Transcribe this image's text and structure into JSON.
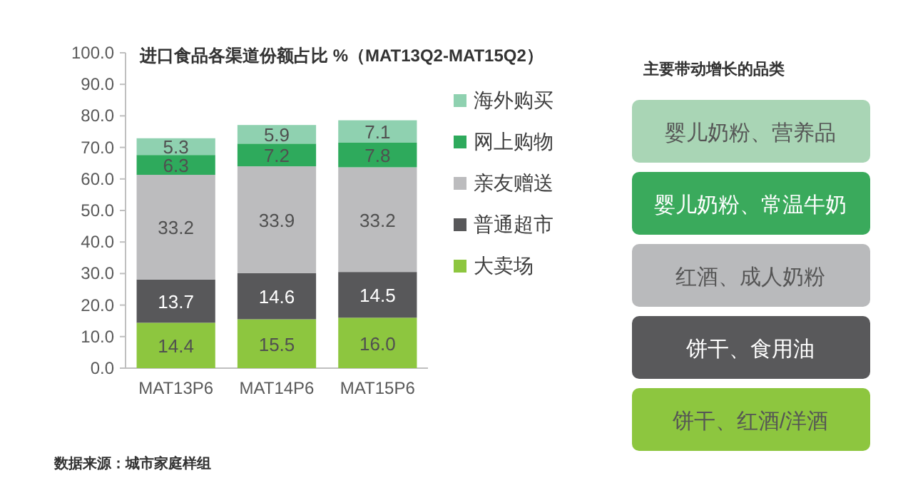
{
  "chart_data": [
    {
      "type": "bar",
      "stacked": true,
      "title": "进口食品各渠道份额占比 %（MAT13Q2-MAT15Q2）",
      "categories": [
        "MAT13P6",
        "MAT14P6",
        "MAT15P6"
      ],
      "series": [
        {
          "name": "大卖场",
          "color": "#8dc63f",
          "values": [
            14.4,
            15.5,
            16.0
          ],
          "value_labels": [
            "14.4",
            "15.5",
            "16.0"
          ]
        },
        {
          "name": "普通超市",
          "color": "#58585a",
          "values": [
            13.7,
            14.6,
            14.5
          ],
          "value_labels": [
            "13.7",
            "14.6",
            "14.5"
          ]
        },
        {
          "name": "亲友赠送",
          "color": "#bcbcbe",
          "values": [
            33.2,
            33.9,
            33.2
          ],
          "value_labels": [
            "33.2",
            "33.9",
            "33.2"
          ]
        },
        {
          "name": "网上购物",
          "color": "#2eaa5c",
          "values": [
            6.3,
            7.2,
            7.8
          ],
          "value_labels": [
            "6.3",
            "7.2",
            "7.8"
          ]
        },
        {
          "name": "海外购买",
          "color": "#8fd1b0",
          "values": [
            5.3,
            5.9,
            7.1
          ],
          "value_labels": [
            "5.3",
            "5.9",
            "7.1"
          ]
        }
      ],
      "ylim": [
        0,
        100
      ],
      "yticks": [
        {
          "value": 0,
          "label": "0.0"
        },
        {
          "value": 10,
          "label": "10.0"
        },
        {
          "value": 20,
          "label": "20.0"
        },
        {
          "value": 30,
          "label": "30.0"
        },
        {
          "value": 40,
          "label": "40.0"
        },
        {
          "value": 50,
          "label": "50.0"
        },
        {
          "value": 60,
          "label": "60.0"
        },
        {
          "value": 70,
          "label": "70.0"
        },
        {
          "value": 80,
          "label": "80.0"
        },
        {
          "value": 90,
          "label": "90.0"
        },
        {
          "value": 100,
          "label": "100.0"
        }
      ],
      "legend": "right",
      "grid": false,
      "annotations": [
        "数据来源：城市家庭样组"
      ]
    },
    {
      "type": "other",
      "title": "主要带动增长的品类",
      "annotations": [
        "婴儿奶粉、营养品",
        "婴儿奶粉、常温牛奶",
        "红酒、成人奶粉",
        "饼干、食用油",
        "饼干、红酒/洋酒"
      ],
      "colors": [
        "#a9d5b5",
        "#3aaa5c",
        "#b9babc",
        "#59595b",
        "#8dc63f"
      ]
    }
  ]
}
